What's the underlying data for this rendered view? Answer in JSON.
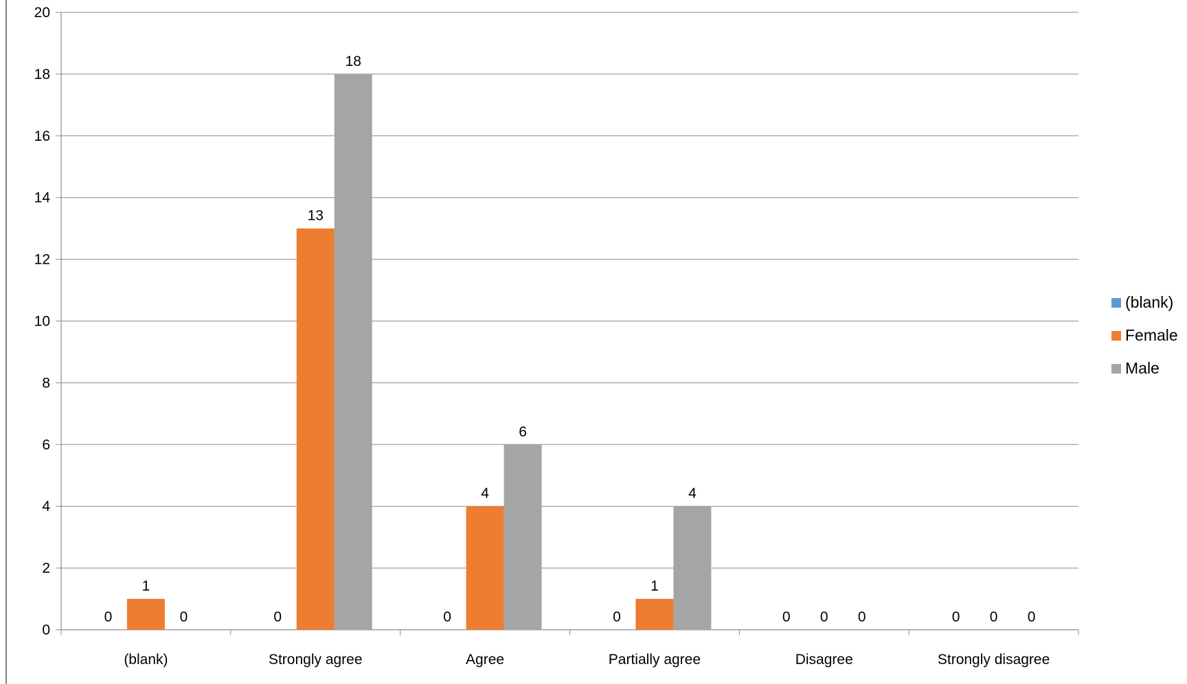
{
  "chart_data": {
    "type": "bar",
    "categories": [
      "(blank)",
      "Strongly agree",
      "Agree",
      "Partially agree",
      "Disagree",
      "Strongly disagree"
    ],
    "series": [
      {
        "name": "(blank)",
        "values": [
          0,
          0,
          0,
          0,
          0,
          0
        ],
        "color": "#5B9BD5"
      },
      {
        "name": "Female",
        "values": [
          1,
          13,
          4,
          1,
          0,
          0
        ],
        "color": "#ED7D31"
      },
      {
        "name": "Male",
        "values": [
          0,
          18,
          6,
          4,
          0,
          0
        ],
        "color": "#A5A5A5"
      }
    ],
    "title": "",
    "xlabel": "",
    "ylabel": "",
    "ylim": [
      0,
      20
    ],
    "yticks": [
      0,
      2,
      4,
      6,
      8,
      10,
      12,
      14,
      16,
      18,
      20
    ],
    "grid": true,
    "legend": "right",
    "data_labels": true
  }
}
